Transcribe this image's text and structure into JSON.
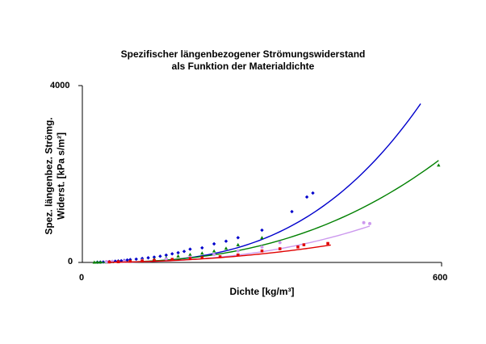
{
  "chart_data": {
    "type": "scatter",
    "title_lines": [
      "Spezifischer längenbezogener Strömungswiderstand",
      "als Funktion der Materialdichte"
    ],
    "xlabel": "Dichte [kg/m³]",
    "ylabel_lines": [
      "Spez. längenbez. Strömg.",
      "Widerst. [kPa s/m²]"
    ],
    "xlim": [
      0,
      600
    ],
    "ylim": [
      0,
      4000
    ],
    "x_ticks": [
      "0",
      "600"
    ],
    "y_ticks": [
      "0",
      "4000"
    ],
    "grid": false,
    "series": [
      {
        "color": "#0000cc",
        "marker": "diamond",
        "points": [
          [
            25,
            5
          ],
          [
            30,
            8
          ],
          [
            35,
            10
          ],
          [
            40,
            14
          ],
          [
            45,
            18
          ],
          [
            50,
            22
          ],
          [
            55,
            28
          ],
          [
            60,
            32
          ],
          [
            65,
            38
          ],
          [
            70,
            45
          ],
          [
            75,
            55
          ],
          [
            80,
            65
          ],
          [
            90,
            75
          ],
          [
            100,
            90
          ],
          [
            110,
            105
          ],
          [
            120,
            120
          ],
          [
            130,
            140
          ],
          [
            140,
            165
          ],
          [
            150,
            195
          ],
          [
            160,
            220
          ],
          [
            170,
            250
          ],
          [
            180,
            300
          ],
          [
            200,
            330
          ],
          [
            220,
            420
          ],
          [
            240,
            480
          ],
          [
            260,
            560
          ],
          [
            300,
            730
          ],
          [
            350,
            1150
          ],
          [
            375,
            1480
          ],
          [
            385,
            1570
          ]
        ],
        "fit": {
          "from": 25,
          "to": 565,
          "a": 1.45e-05,
          "b": 3.05
        }
      },
      {
        "color": "#008000",
        "marker": "triangle",
        "points": [
          [
            20,
            5
          ],
          [
            25,
            6
          ],
          [
            30,
            8
          ],
          [
            40,
            10
          ],
          [
            50,
            15
          ],
          [
            60,
            18
          ],
          [
            80,
            30
          ],
          [
            100,
            55
          ],
          [
            120,
            75
          ],
          [
            140,
            110
          ],
          [
            160,
            145
          ],
          [
            180,
            180
          ],
          [
            200,
            210
          ],
          [
            220,
            260
          ],
          [
            240,
            320
          ],
          [
            260,
            400
          ],
          [
            300,
            560
          ],
          [
            595,
            2200
          ]
        ],
        "fit": {
          "from": 20,
          "to": 595,
          "a": 0.000141,
          "b": 2.6
        }
      },
      {
        "color": "#cc99ee",
        "marker": "circle",
        "points": [
          [
            40,
            15
          ],
          [
            50,
            20
          ],
          [
            70,
            30
          ],
          [
            100,
            45
          ],
          [
            140,
            80
          ],
          [
            180,
            120
          ],
          [
            220,
            180
          ],
          [
            260,
            260
          ],
          [
            300,
            350
          ],
          [
            330,
            450
          ],
          [
            470,
            900
          ],
          [
            480,
            880
          ]
        ],
        "fit": {
          "from": 40,
          "to": 480,
          "a": 8.8e-05,
          "b": 2.6
        }
      },
      {
        "color": "#e00000",
        "marker": "square",
        "points": [
          [
            45,
            10
          ],
          [
            60,
            15
          ],
          [
            80,
            25
          ],
          [
            100,
            35
          ],
          [
            120,
            50
          ],
          [
            150,
            70
          ],
          [
            180,
            90
          ],
          [
            200,
            105
          ],
          [
            230,
            130
          ],
          [
            260,
            170
          ],
          [
            300,
            260
          ],
          [
            330,
            310
          ],
          [
            360,
            350
          ],
          [
            370,
            400
          ],
          [
            410,
            430
          ]
        ],
        "fit": {
          "from": 45,
          "to": 415,
          "a": 0.00082,
          "b": 2.17
        }
      }
    ]
  }
}
